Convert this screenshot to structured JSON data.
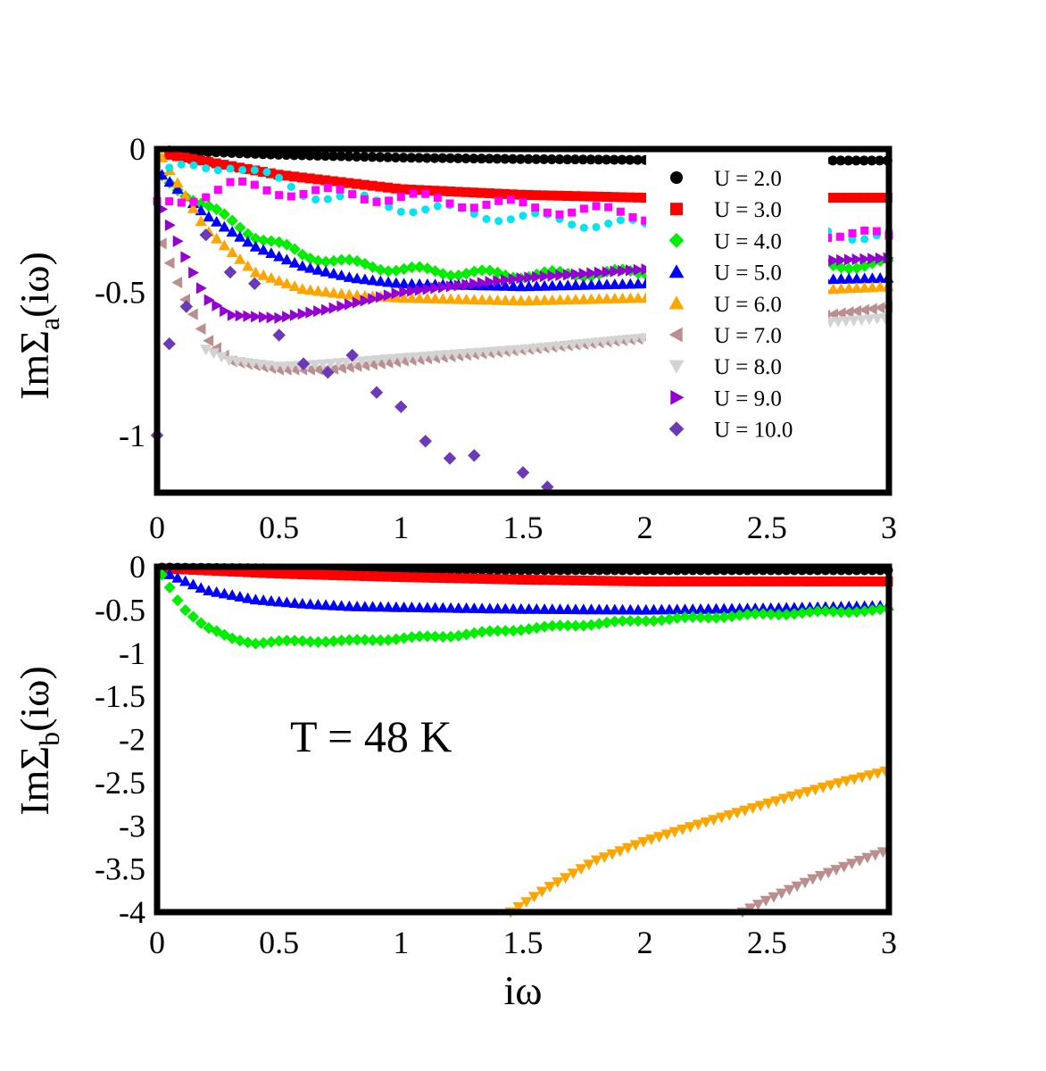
{
  "chart_data": [
    {
      "type": "scatter",
      "panel": "top",
      "ylabel_base": "ImΣ",
      "ylabel_sub": "a",
      "ylabel_tail": "(iω)",
      "xlabel": "",
      "xlim": [
        0,
        3
      ],
      "ylim": [
        -1.2,
        0
      ],
      "xticks": [
        "0",
        "0.5",
        "1",
        "1.5",
        "2",
        "2.5",
        "3"
      ],
      "xtick_values": [
        0,
        0.5,
        1,
        1.5,
        2,
        2.5,
        3
      ],
      "yticks": [
        "0",
        "-0.5",
        "-1"
      ],
      "ytick_values": [
        0,
        -0.5,
        -1
      ],
      "legend_position": "top-right",
      "series": [
        {
          "name": "U = 2.0",
          "label": "U = 2.0",
          "color": "#000000",
          "marker": "circle",
          "x": [
            0.05,
            0.5,
            1.0,
            1.5,
            2.0,
            2.5,
            3.0
          ],
          "y": [
            -0.005,
            -0.02,
            -0.03,
            -0.035,
            -0.038,
            -0.04,
            -0.04
          ]
        },
        {
          "name": "U = 3.0",
          "label": "U = 3.0",
          "color": "#ff0000",
          "marker": "square",
          "x": [
            0.05,
            0.5,
            1.0,
            1.5,
            2.0,
            2.5,
            3.0
          ],
          "y": [
            -0.02,
            -0.09,
            -0.14,
            -0.16,
            -0.17,
            -0.17,
            -0.17
          ]
        },
        {
          "name": "U = 4.0",
          "label": "U = 4.0",
          "color": "#00ee00",
          "marker": "diamond",
          "x": [
            0.02,
            0.2,
            0.4,
            0.6,
            0.8,
            1.0,
            1.2,
            1.5,
            2.0,
            2.5,
            3.0
          ],
          "y": [
            -0.1,
            -0.2,
            -0.3,
            -0.37,
            -0.4,
            -0.42,
            -0.43,
            -0.44,
            -0.43,
            -0.42,
            -0.4
          ]
        },
        {
          "name": "U = 5.0",
          "label": "U = 5.0",
          "color": "#0000ff",
          "marker": "triangle-up",
          "x": [
            0.02,
            0.2,
            0.4,
            0.6,
            0.8,
            1.0,
            1.5,
            2.0,
            2.5,
            3.0
          ],
          "y": [
            -0.09,
            -0.23,
            -0.34,
            -0.41,
            -0.45,
            -0.47,
            -0.48,
            -0.47,
            -0.46,
            -0.45
          ]
        },
        {
          "name": "U = 6.0",
          "label": "U = 6.0",
          "color": "#ffa500",
          "marker": "triangle-up",
          "x": [
            0.02,
            0.2,
            0.4,
            0.6,
            0.8,
            1.0,
            1.5,
            2.0,
            2.5,
            3.0
          ],
          "y": [
            -0.03,
            -0.28,
            -0.43,
            -0.49,
            -0.51,
            -0.52,
            -0.53,
            -0.52,
            -0.5,
            -0.48
          ]
        },
        {
          "name": "U = 7.0",
          "label": "U = 7.0",
          "color": "#bc8f8f",
          "marker": "triangle-left",
          "x": [
            0.02,
            0.1,
            0.2,
            0.3,
            0.5,
            0.7,
            1.0,
            1.5,
            2.0,
            2.5,
            3.0
          ],
          "y": [
            -0.33,
            -0.5,
            -0.66,
            -0.74,
            -0.77,
            -0.77,
            -0.74,
            -0.7,
            -0.66,
            -0.61,
            -0.55
          ]
        },
        {
          "name": "U = 8.0",
          "label": "U = 8.0",
          "color": "#d3d3d3",
          "marker": "triangle-down",
          "x": [
            0.2,
            0.3,
            0.5,
            0.7,
            1.0,
            1.5,
            2.0,
            2.5,
            3.0
          ],
          "y": [
            -0.7,
            -0.74,
            -0.76,
            -0.75,
            -0.73,
            -0.7,
            -0.66,
            -0.62,
            -0.59
          ]
        },
        {
          "name": "U = 9.0",
          "label": "U = 9.0",
          "color": "#9400d3",
          "marker": "triangle-right",
          "x": [
            0.02,
            0.1,
            0.2,
            0.3,
            0.5,
            0.7,
            1.0,
            1.5,
            2.0,
            2.5,
            3.0
          ],
          "y": [
            -0.21,
            -0.35,
            -0.52,
            -0.58,
            -0.59,
            -0.56,
            -0.5,
            -0.45,
            -0.42,
            -0.4,
            -0.38
          ]
        },
        {
          "name": "U = 10.0",
          "label": "U = 10.0",
          "color": "#6a3ab8",
          "marker": "diamond",
          "x": [
            0.0,
            0.05,
            0.12,
            0.2,
            0.3,
            0.4,
            0.5,
            0.6,
            0.7,
            0.8,
            0.9,
            1.0,
            1.1,
            1.2,
            1.3,
            1.5,
            1.6
          ],
          "y": [
            -1.0,
            -0.68,
            -0.55,
            -0.3,
            -0.43,
            -0.47,
            -0.65,
            -0.75,
            -0.78,
            -0.72,
            -0.85,
            -0.9,
            -1.02,
            -1.08,
            -1.07,
            -1.13,
            -1.18
          ]
        }
      ]
    },
    {
      "type": "scatter",
      "panel": "bottom",
      "ylabel_base": "ImΣ",
      "ylabel_sub": "b",
      "ylabel_tail": "(iω)",
      "xlabel": "iω",
      "xlim": [
        0,
        3
      ],
      "ylim": [
        -4,
        0
      ],
      "xticks": [
        "0",
        "0.5",
        "1",
        "1.5",
        "2",
        "2.5",
        "3"
      ],
      "xtick_values": [
        0,
        0.5,
        1,
        1.5,
        2,
        2.5,
        3
      ],
      "yticks": [
        "0",
        "-0.5",
        "-1",
        "-1.5",
        "-2",
        "-2.5",
        "-3",
        "-3.5",
        "-4"
      ],
      "ytick_values": [
        0,
        -0.5,
        -1,
        -1.5,
        -2,
        -2.5,
        -3,
        -3.5,
        -4
      ],
      "annotation": "T = 48 K",
      "series": [
        {
          "name": "U = 2.0",
          "color": "#000000",
          "marker": "circle",
          "x": [
            0.02,
            0.5,
            1.0,
            1.5,
            2.0,
            2.5,
            3.0
          ],
          "y": [
            -0.01,
            -0.02,
            -0.03,
            -0.04,
            -0.04,
            -0.04,
            -0.04
          ]
        },
        {
          "name": "U = 3.0",
          "color": "#ff0000",
          "marker": "square",
          "x": [
            0.02,
            0.5,
            1.0,
            1.5,
            2.0,
            2.5,
            3.0
          ],
          "y": [
            -0.02,
            -0.08,
            -0.12,
            -0.15,
            -0.17,
            -0.17,
            -0.17
          ]
        },
        {
          "name": "U = 5.0",
          "color": "#0000ff",
          "marker": "triangle-up",
          "x": [
            0.02,
            0.2,
            0.4,
            0.6,
            0.8,
            1.0,
            1.5,
            2.0,
            2.5,
            3.0
          ],
          "y": [
            -0.05,
            -0.27,
            -0.38,
            -0.43,
            -0.46,
            -0.47,
            -0.49,
            -0.5,
            -0.48,
            -0.45
          ]
        },
        {
          "name": "U = 4.0",
          "color": "#00ee00",
          "marker": "diamond",
          "x": [
            0.02,
            0.1,
            0.2,
            0.3,
            0.4,
            0.6,
            0.8,
            1.0,
            1.2,
            1.5,
            2.0,
            2.5,
            3.0
          ],
          "y": [
            -0.1,
            -0.45,
            -0.7,
            -0.83,
            -0.88,
            -0.86,
            -0.86,
            -0.83,
            -0.8,
            -0.72,
            -0.62,
            -0.55,
            -0.5
          ]
        },
        {
          "name": "U = 6.0",
          "color": "#ffa500",
          "marker": "triangle-down",
          "x": [
            1.45,
            1.6,
            1.8,
            2.0,
            2.2,
            2.4,
            2.6,
            2.8,
            3.0
          ],
          "y": [
            -4.0,
            -3.72,
            -3.4,
            -3.18,
            -3.0,
            -2.83,
            -2.66,
            -2.5,
            -2.36
          ]
        },
        {
          "name": "U = 7.0",
          "color": "#bc8f8f",
          "marker": "triangle-down",
          "x": [
            2.4,
            2.5,
            2.6,
            2.7,
            2.8,
            2.9,
            3.0
          ],
          "y": [
            -4.0,
            -3.86,
            -3.73,
            -3.6,
            -3.49,
            -3.38,
            -3.28
          ]
        }
      ]
    }
  ]
}
